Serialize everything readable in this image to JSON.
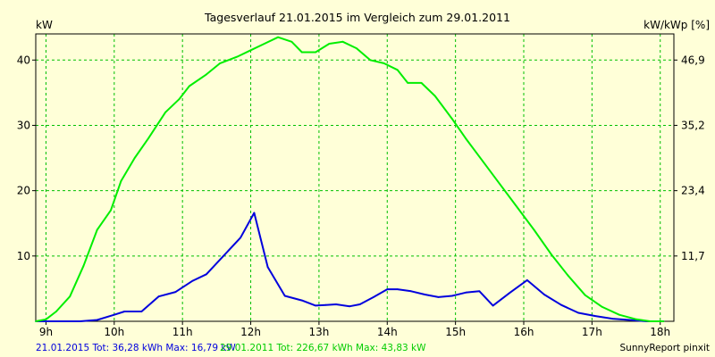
{
  "chart_data": {
    "type": "line",
    "title": "Tagesverlauf 21.01.2015 im Vergleich zum 29.01.2011",
    "ylabel_left": "kW",
    "ylabel_right": "kW/kWp [%]",
    "x_ticks": [
      "9h",
      "10h",
      "11h",
      "12h",
      "13h",
      "14h",
      "15h",
      "16h",
      "17h",
      "18h"
    ],
    "xlim": [
      8.85,
      18.2
    ],
    "y_ticks_left": [
      10,
      20,
      30,
      40
    ],
    "y_ticks_right": [
      "11,7",
      "23,4",
      "35,2",
      "46,9"
    ],
    "ylim": [
      0,
      44
    ],
    "grid": true,
    "series": [
      {
        "name": "21.01.2015",
        "color": "#0000dd",
        "x": [
          8.85,
          9.25,
          9.5,
          9.75,
          10.0,
          10.15,
          10.4,
          10.65,
          10.9,
          11.15,
          11.35,
          11.6,
          11.85,
          12.05,
          12.25,
          12.5,
          12.75,
          12.95,
          13.1,
          13.25,
          13.45,
          13.6,
          13.8,
          14.0,
          14.15,
          14.35,
          14.55,
          14.75,
          14.95,
          15.15,
          15.35,
          15.55,
          15.8,
          16.05,
          16.3,
          16.55,
          16.8,
          17.05,
          17.3,
          17.55,
          17.8,
          18.05
        ],
        "y": [
          0,
          0,
          0,
          0.2,
          1,
          1.5,
          1.5,
          3.8,
          4.5,
          6.2,
          7.2,
          10,
          12.8,
          16.6,
          8.3,
          3.9,
          3.2,
          2.4,
          2.5,
          2.6,
          2.3,
          2.6,
          3.7,
          4.9,
          4.9,
          4.6,
          4.1,
          3.7,
          3.9,
          4.4,
          4.6,
          2.4,
          4.4,
          6.3,
          4.1,
          2.5,
          1.3,
          0.8,
          0.4,
          0.2,
          0,
          0
        ]
      },
      {
        "name": "29.01.2011",
        "color": "#00ee00",
        "x": [
          8.85,
          9.0,
          9.15,
          9.35,
          9.55,
          9.75,
          9.95,
          10.1,
          10.3,
          10.5,
          10.75,
          10.95,
          11.1,
          11.35,
          11.55,
          11.8,
          12.0,
          12.2,
          12.4,
          12.6,
          12.75,
          12.95,
          13.15,
          13.35,
          13.55,
          13.75,
          13.95,
          14.15,
          14.3,
          14.5,
          14.7,
          14.95,
          15.15,
          15.4,
          15.65,
          15.9,
          16.15,
          16.4,
          16.65,
          16.9,
          17.15,
          17.4,
          17.65,
          17.85,
          18.05
        ],
        "y": [
          0,
          0.3,
          1.5,
          3.8,
          8.5,
          14,
          17,
          21.5,
          25,
          28,
          32,
          34,
          36,
          37.8,
          39.5,
          40.5,
          41.5,
          42.5,
          43.5,
          42.8,
          41.2,
          41.2,
          42.5,
          42.8,
          41.8,
          40,
          39.5,
          38.5,
          36.5,
          36.5,
          34.5,
          31,
          28,
          24.5,
          21,
          17.5,
          14,
          10.3,
          7,
          4,
          2.2,
          1,
          0.3,
          0,
          0
        ]
      }
    ],
    "legend": [
      {
        "text": "21.01.2015 Tot: 36,28 kWh Max: 16,79 kW",
        "color": "#0000dd"
      },
      {
        "text": "29.01.2011 Tot: 226,67 kWh Max: 43,83 kW",
        "color": "#00cc00"
      }
    ],
    "credit": "SunnyReport pinxit"
  }
}
